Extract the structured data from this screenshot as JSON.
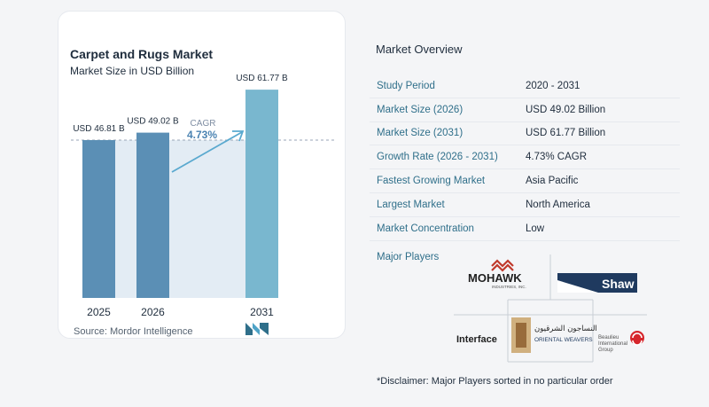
{
  "chart": {
    "title": "Carpet and Rugs Market",
    "subtitle": "Market Size in USD Billion",
    "source": "Source: Mordor Intelligence"
  },
  "chart_data": {
    "type": "bar",
    "title": "Carpet and Rugs Market",
    "subtitle": "Market Size in USD Billion",
    "categories": [
      "2025",
      "2026",
      "2031"
    ],
    "values": [
      46.81,
      49.02,
      61.77
    ],
    "value_labels": [
      "USD 46.81 B",
      "USD 49.02 B",
      "USD 61.77 B"
    ],
    "annotation": {
      "label": "CAGR",
      "value": "4.73%"
    },
    "colors": {
      "bar": "#5b8fb5",
      "bar_last": "#79b7cf",
      "band": "#e3ecf4",
      "arrow": "#5aa9cf",
      "cagr_label": "#7f8ea3",
      "cagr_value": "#4b83b2"
    }
  },
  "overview": {
    "title": "Market Overview",
    "rows": [
      {
        "key": "Study Period",
        "value": "2020 - 2031"
      },
      {
        "key": "Market Size (2026)",
        "value": "USD 49.02 Billion"
      },
      {
        "key": "Market Size (2031)",
        "value": "USD 61.77 Billion"
      },
      {
        "key": "Growth Rate (2026 - 2031)",
        "value": "4.73% CAGR"
      },
      {
        "key": "Fastest Growing Market",
        "value": "Asia Pacific"
      },
      {
        "key": "Largest Market",
        "value": "North America"
      },
      {
        "key": "Market Concentration",
        "value": "Low"
      }
    ]
  },
  "players": {
    "title": "Major Players",
    "logos": {
      "mohawk": "MOHAWK",
      "mohawk_sub": "INDUSTRIES, INC.",
      "shaw": "Shaw",
      "interface": "Interface",
      "oriental_ar": "النساجون الشرقيون",
      "oriental_en": "ORIENTAL WEAVERS",
      "beaulieu_1": "Beaulieu",
      "beaulieu_2": "International",
      "beaulieu_3": "Group"
    }
  },
  "disclaimer": "*Disclaimer: Major Players sorted in no particular order"
}
